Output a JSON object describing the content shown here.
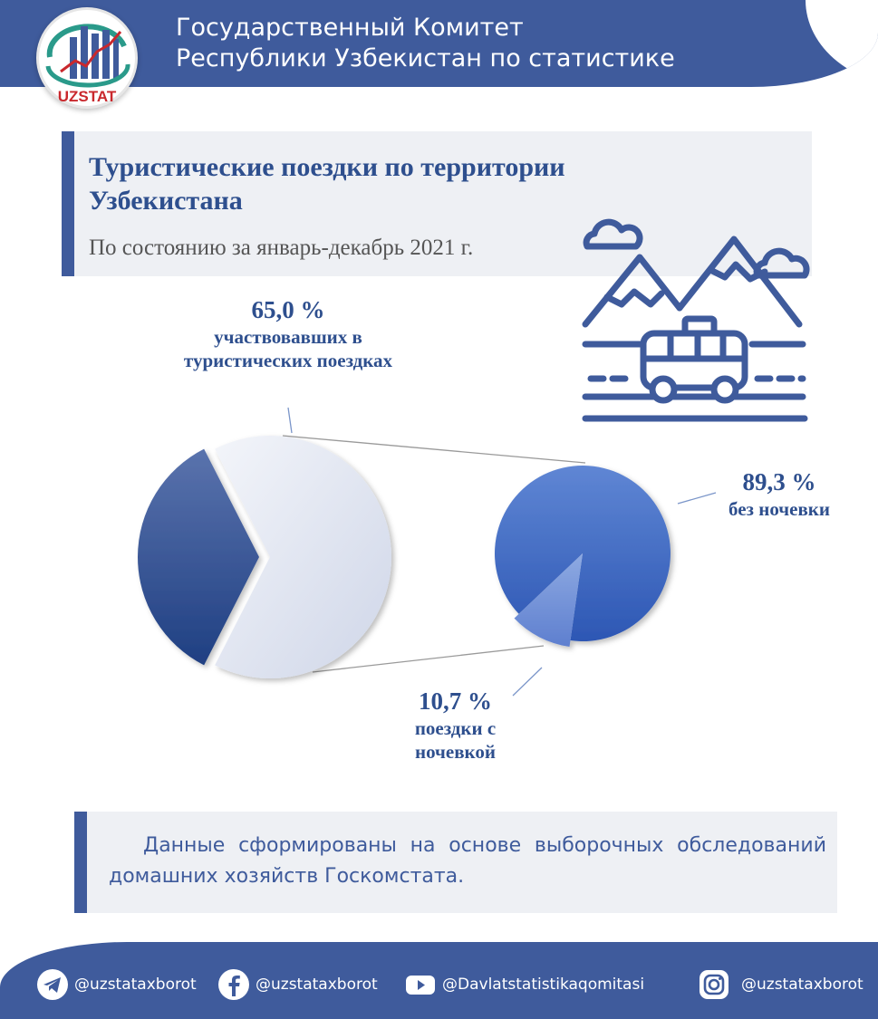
{
  "header": {
    "logo_text": "UZSTAT",
    "title_line1": "Государственный Комитет",
    "title_line2": "Республики Узбекистан по статистике"
  },
  "title_panel": {
    "title": "Туристические поездки по территории Узбекистана",
    "subtitle": "По состоянию за январь-декабрь 2021 г."
  },
  "chart_data": {
    "type": "pie",
    "title": "",
    "pie": {
      "slices": [
        {
          "value": 65.0,
          "label": "65,0 %",
          "desc": "участвовавших в туристических поездках",
          "color": "#dde2ef"
        },
        {
          "value": 35.0,
          "label": "",
          "desc": "",
          "color": "#2c4d92"
        }
      ]
    },
    "breakdown": {
      "slices": [
        {
          "value": 89.3,
          "label": "89,3 %",
          "desc": "без ночевки",
          "color": "#3a68c4"
        },
        {
          "value": 10.7,
          "label": "10,7 %",
          "desc": "поездки с ночевкой",
          "color": "#6f8fd3"
        }
      ]
    }
  },
  "labels": {
    "a_pct": "65,0 %",
    "a_desc": "участвовавших в туристических поездках",
    "b_pct": "89,3 %",
    "b_desc": "без ночевки",
    "c_pct": "10,7 %",
    "c_desc": "поездки с ночевкой"
  },
  "note": {
    "text": "Данные сформированы на основе выборочных обследований домашних хозяйств  Госкомстата."
  },
  "footer": {
    "telegram": "@uzstataxborot",
    "facebook": "@uzstataxborot",
    "youtube": "@Davlatstatistikaqomitasi",
    "instagram": "@uzstataxborot"
  },
  "colors": {
    "brand": "#3f5b9c",
    "title": "#2e4f8e",
    "panel": "#eef0f4"
  }
}
